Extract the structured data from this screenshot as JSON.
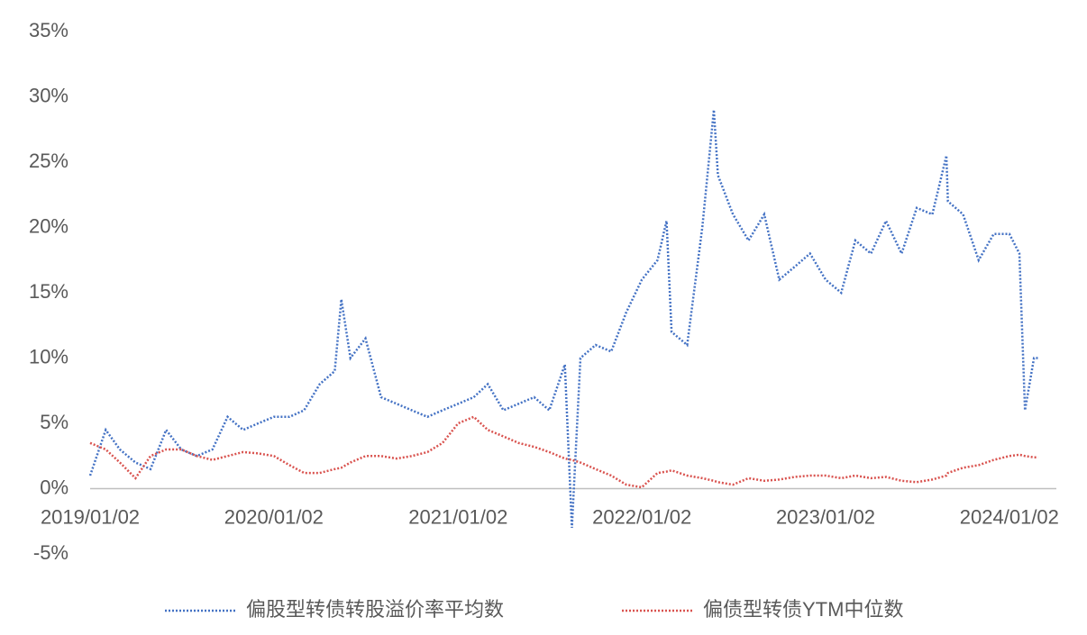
{
  "chart_data": {
    "type": "line",
    "x": [
      "2019/01/02",
      "2019/02/02",
      "2019/03/02",
      "2019/04/02",
      "2019/05/02",
      "2019/06/02",
      "2019/07/02",
      "2019/08/02",
      "2019/09/02",
      "2019/10/02",
      "2019/11/02",
      "2019/12/02",
      "2020/01/02",
      "2020/02/02",
      "2020/03/02",
      "2020/04/02",
      "2020/05/02",
      "2020/05/15",
      "2020/06/02",
      "2020/07/02",
      "2020/08/02",
      "2020/09/02",
      "2020/10/02",
      "2020/11/02",
      "2020/12/02",
      "2021/01/02",
      "2021/02/02",
      "2021/03/02",
      "2021/04/02",
      "2021/05/02",
      "2021/06/02",
      "2021/07/02",
      "2021/08/02",
      "2021/08/16",
      "2021/09/02",
      "2021/10/02",
      "2021/11/02",
      "2021/12/02",
      "2022/01/02",
      "2022/02/02",
      "2022/02/20",
      "2022/03/02",
      "2022/04/02",
      "2022/05/02",
      "2022/05/25",
      "2022/06/02",
      "2022/07/02",
      "2022/08/02",
      "2022/09/02",
      "2022/10/02",
      "2022/11/02",
      "2022/12/02",
      "2023/01/02",
      "2023/02/02",
      "2023/03/02",
      "2023/04/02",
      "2023/05/02",
      "2023/06/02",
      "2023/07/02",
      "2023/08/02",
      "2023/08/30",
      "2023/09/02",
      "2023/10/02",
      "2023/11/02",
      "2023/12/02",
      "2024/01/02",
      "2024/01/22",
      "2024/02/02",
      "2024/02/20",
      "2024/02/28"
    ],
    "series": [
      {
        "name": "偏股型转债转股溢价率平均数",
        "color": "#4472c4",
        "values": [
          1,
          4.5,
          3,
          2,
          1.5,
          4.5,
          3,
          2.5,
          3,
          5.5,
          4.5,
          5,
          5.5,
          5.5,
          6,
          8,
          9,
          14.5,
          10,
          11.5,
          7,
          6.5,
          6,
          5.5,
          6,
          6.5,
          7,
          8,
          6,
          6.5,
          7,
          6,
          9.5,
          -3,
          10,
          11,
          10.5,
          13.5,
          16,
          17.5,
          20.5,
          12,
          11,
          20,
          29,
          24,
          21,
          19,
          21,
          16,
          17,
          18,
          16,
          15,
          19,
          18,
          20.5,
          18,
          21.5,
          21,
          25.5,
          22,
          21,
          17.5,
          19.5,
          19.5,
          18,
          6,
          10,
          10
        ]
      },
      {
        "name": "偏债型转债YTM中位数",
        "color": "#d9534f",
        "values": [
          3.5,
          3,
          2,
          0.8,
          2.5,
          3,
          3,
          2.5,
          2.2,
          2.5,
          2.8,
          2.7,
          2.5,
          1.8,
          1.2,
          1.2,
          1.5,
          1.6,
          2,
          2.5,
          2.5,
          2.3,
          2.5,
          2.8,
          3.5,
          5,
          5.5,
          4.5,
          4,
          3.5,
          3.2,
          2.8,
          2.3,
          2.2,
          2,
          1.5,
          1,
          0.3,
          0.1,
          1.2,
          1.3,
          1.4,
          1,
          0.8,
          0.6,
          0.5,
          0.3,
          0.8,
          0.6,
          0.7,
          0.9,
          1,
          1,
          0.8,
          1,
          0.8,
          0.9,
          0.6,
          0.5,
          0.7,
          1,
          1.2,
          1.6,
          1.8,
          2.2,
          2.5,
          2.6,
          2.5,
          2.4,
          2.4
        ]
      }
    ],
    "xlim": [
      "2019/01/02",
      "2024/03/15"
    ],
    "xticks": [
      "2019/01/02",
      "2020/01/02",
      "2021/01/02",
      "2022/01/02",
      "2023/01/02",
      "2024/01/02"
    ],
    "ylim": [
      -5,
      35
    ],
    "yticks": [
      {
        "value": -5,
        "label": "-5%"
      },
      {
        "value": 0,
        "label": "0%"
      },
      {
        "value": 5,
        "label": "5%"
      },
      {
        "value": 10,
        "label": "10%"
      },
      {
        "value": 15,
        "label": "15%"
      },
      {
        "value": 20,
        "label": "20%"
      },
      {
        "value": 25,
        "label": "25%"
      },
      {
        "value": 30,
        "label": "30%"
      },
      {
        "value": 35,
        "label": "35%"
      }
    ],
    "legend": "bottom"
  }
}
